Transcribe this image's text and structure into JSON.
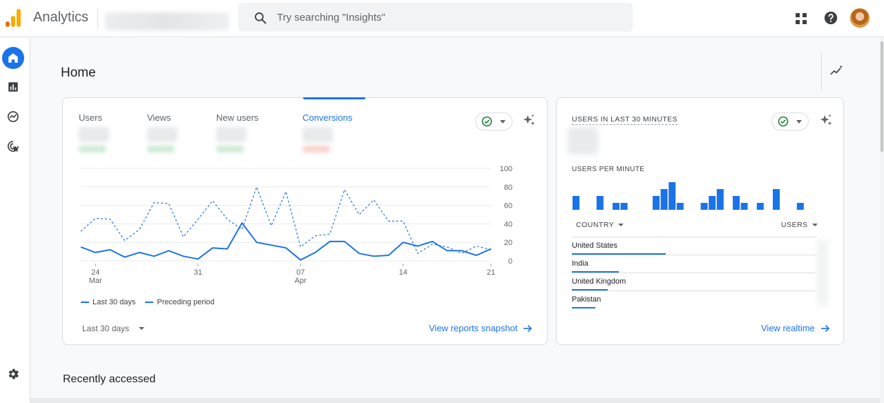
{
  "app": {
    "title": "Analytics"
  },
  "search": {
    "placeholder": "Try searching \"Insights\""
  },
  "page": {
    "title": "Home"
  },
  "metrics": [
    {
      "label": "Users"
    },
    {
      "label": "Views"
    },
    {
      "label": "New users"
    },
    {
      "label": "Conversions"
    }
  ],
  "chart_data": {
    "type": "line",
    "y_ticks": [
      "100",
      "80",
      "60",
      "40",
      "20",
      "0"
    ],
    "x_ticks": [
      {
        "day": "24",
        "month": "Mar"
      },
      {
        "day": "31",
        "month": ""
      },
      {
        "day": "07",
        "month": "Apr"
      },
      {
        "day": "14",
        "month": ""
      },
      {
        "day": "21",
        "month": ""
      }
    ],
    "ylim": [
      0,
      100
    ],
    "series": [
      {
        "name": "Last 30 days",
        "style": "solid",
        "values": [
          15,
          9,
          12,
          4,
          9,
          5,
          11,
          5,
          2,
          14,
          13,
          41,
          20,
          17,
          14,
          1,
          9,
          21,
          21,
          8,
          5,
          6,
          20,
          16,
          21,
          11,
          11,
          6,
          13
        ]
      },
      {
        "name": "Preceding period",
        "style": "dashed",
        "values": [
          32,
          46,
          45,
          22,
          34,
          63,
          62,
          26,
          45,
          65,
          45,
          34,
          80,
          38,
          75,
          15,
          27,
          29,
          77,
          50,
          66,
          43,
          43,
          8,
          18,
          15,
          8,
          16,
          12
        ]
      }
    ]
  },
  "legend": {
    "current": "Last 30 days",
    "previous": "Preceding period"
  },
  "main_card": {
    "range": "Last 30 days",
    "link": "View reports snapshot"
  },
  "realtime": {
    "heading": "USERS IN LAST 30 MINUTES",
    "per_minute_label": "USERS PER MINUTE",
    "per_minute": [
      3,
      0,
      0,
      3,
      0,
      1.5,
      1.5,
      0,
      0,
      0,
      3,
      4.5,
      6,
      1.5,
      0,
      0,
      1.5,
      3,
      4.5,
      0,
      3,
      1.5,
      0,
      1.5,
      0,
      4.5,
      0,
      0,
      1.5
    ],
    "country_col": "COUNTRY",
    "users_col": "USERS",
    "countries": [
      {
        "name": "United States",
        "share": 1.0
      },
      {
        "name": "India",
        "share": 0.5
      },
      {
        "name": "United Kingdom",
        "share": 0.38
      },
      {
        "name": "Pakistan",
        "share": 0.25
      }
    ],
    "link": "View realtime"
  },
  "recent": {
    "title": "Recently accessed"
  },
  "colors": {
    "accent": "#1a73e8",
    "logo_orange": "#f9ab00",
    "logo_dark": "#e37400"
  }
}
